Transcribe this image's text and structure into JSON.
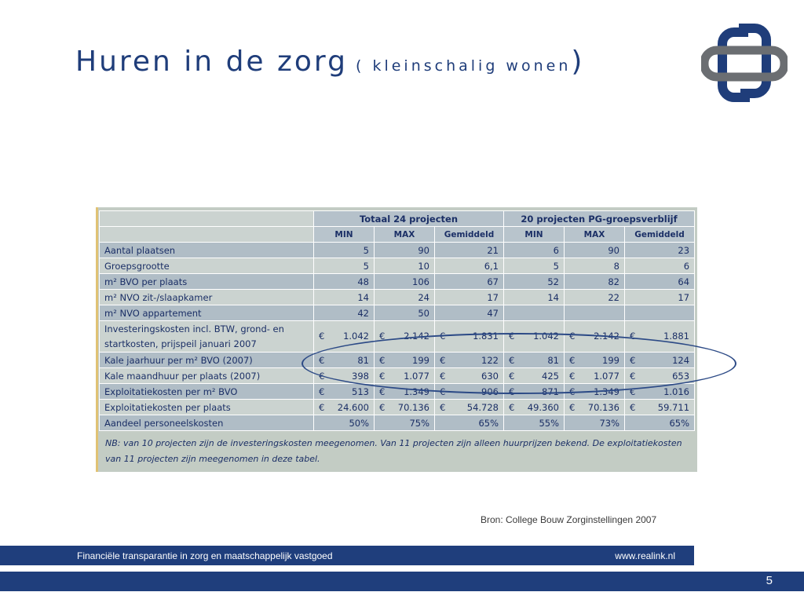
{
  "title": {
    "main": "Huren in de zorg",
    "open": " ( ",
    "sub": "kleinschalig wonen",
    "close": ")"
  },
  "table": {
    "groups": [
      "Totaal 24 projecten",
      "20 projecten PG-groepsverblijf"
    ],
    "subheaders": [
      "MIN",
      "MAX",
      "Gemiddeld",
      "MIN",
      "MAX",
      "Gemiddeld"
    ],
    "rows": [
      {
        "label": "Aantal plaatsen",
        "values": [
          "5",
          "90",
          "21",
          "6",
          "90",
          "23"
        ]
      },
      {
        "label": "Groepsgrootte",
        "values": [
          "5",
          "10",
          "6,1",
          "5",
          "8",
          "6"
        ]
      },
      {
        "label": "m² BVO per plaats",
        "values": [
          "48",
          "106",
          "67",
          "52",
          "82",
          "64"
        ]
      },
      {
        "label": "m² NVO zit-/slaapkamer",
        "values": [
          "14",
          "24",
          "17",
          "14",
          "22",
          "17"
        ]
      },
      {
        "label": "m² NVO appartement",
        "values": [
          "42",
          "50",
          "47",
          "",
          "",
          ""
        ]
      },
      {
        "label": "Investeringskosten incl. BTW, grond- en startkosten, prijspeil januari 2007",
        "values": [
          "1.042",
          "2.142",
          "1.831",
          "1.042",
          "2.142",
          "1.881"
        ]
      },
      {
        "label": "Kale jaarhuur per m² BVO (2007)",
        "values": [
          "81",
          "199",
          "122",
          "81",
          "199",
          "124"
        ]
      },
      {
        "label": "Kale maandhuur per plaats (2007)",
        "values": [
          "398",
          "1.077",
          "630",
          "425",
          "1.077",
          "653"
        ]
      },
      {
        "label": "Exploitatiekosten per m² BVO",
        "values": [
          "513",
          "1.349",
          "906",
          "871",
          "1.349",
          "1.016"
        ]
      },
      {
        "label": "Exploitatiekosten per plaats",
        "values": [
          "24.600",
          "70.136",
          "54.728",
          "49.360",
          "70.136",
          "59.711"
        ]
      },
      {
        "label": "Aandeel personeelskosten",
        "values": [
          "50%",
          "75%",
          "65%",
          "55%",
          "73%",
          "65%"
        ]
      }
    ],
    "currency_symbol": "€",
    "note": "NB: van 10 projecten zijn de investeringskosten meegenomen. Van 11 projecten zijn alleen huurprijzen bekend. De exploitatiekosten van 11 projecten zijn meegenomen in deze tabel."
  },
  "source": "Bron: College Bouw Zorginstellingen 2007",
  "footer": {
    "left": "Financiële transparantie in zorg en maatschappelijk vastgoed",
    "right": "www.realink.nl"
  },
  "page_number": "5",
  "colors": {
    "brand_blue": "#1f3e7c",
    "logo_gray": "#6b6e72",
    "logo_blue": "#1f3d7a"
  }
}
